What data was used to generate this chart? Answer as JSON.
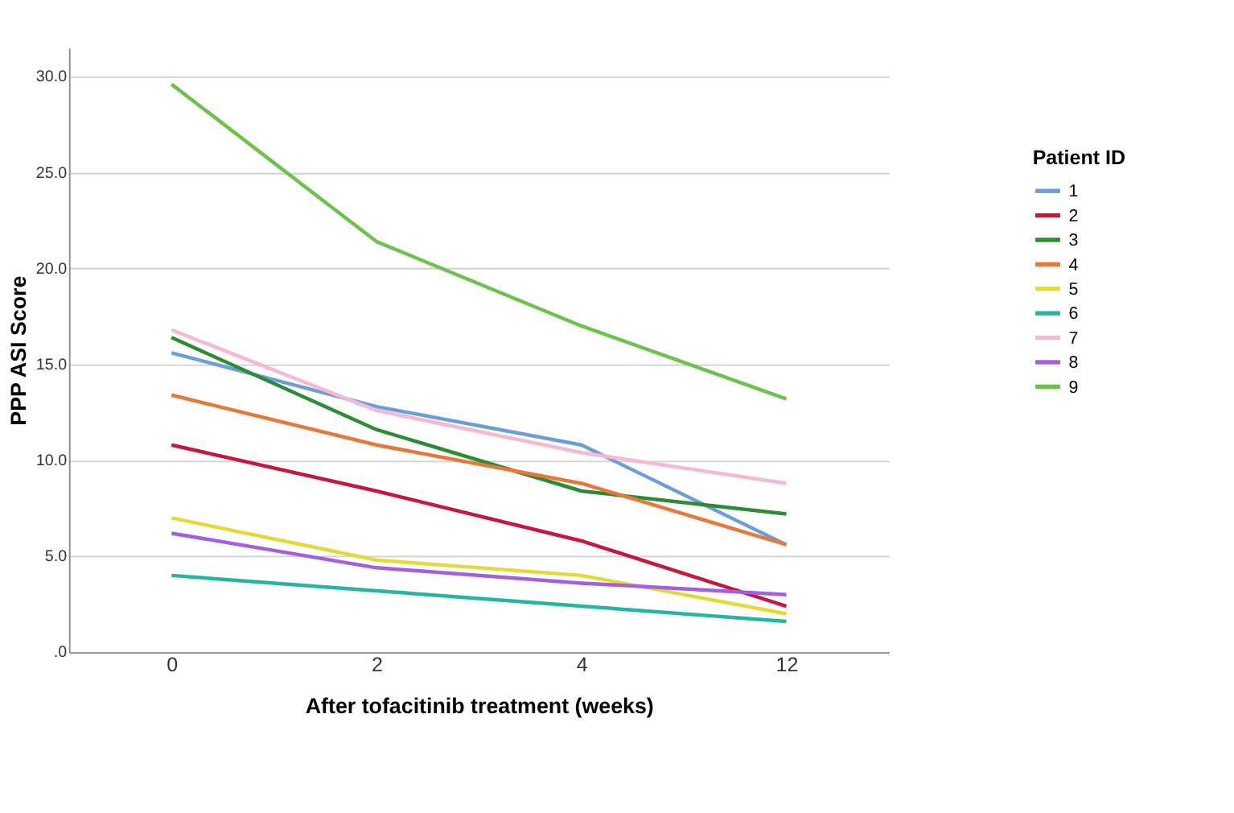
{
  "chart_data": {
    "type": "line",
    "xlabel": "After tofacitinib treatment (weeks)",
    "ylabel": "PPP ASI Score",
    "legend_title": "Patient ID",
    "categories": [
      "0",
      "2",
      "4",
      "12"
    ],
    "ylim": [
      0,
      31.5
    ],
    "yticks": [
      {
        "value": 0,
        "label": ".0"
      },
      {
        "value": 5,
        "label": "5.0"
      },
      {
        "value": 10,
        "label": "10.0"
      },
      {
        "value": 15,
        "label": "15.0"
      },
      {
        "value": 20,
        "label": "20.0"
      },
      {
        "value": 25,
        "label": "25.0"
      },
      {
        "value": 30,
        "label": "30.0"
      }
    ],
    "grid": "y",
    "legend": "right",
    "marker": "none",
    "line_style": "solid",
    "series": [
      {
        "name": "1",
        "color": "#6a9ed8",
        "values": [
          15.6,
          12.8,
          10.8,
          5.6
        ]
      },
      {
        "name": "2",
        "color": "#c8173f",
        "values": [
          10.8,
          8.4,
          5.8,
          2.4
        ]
      },
      {
        "name": "3",
        "color": "#2e8b35",
        "values": [
          16.4,
          11.6,
          8.4,
          7.2
        ]
      },
      {
        "name": "4",
        "color": "#e8773a",
        "values": [
          13.4,
          10.8,
          8.8,
          5.6
        ]
      },
      {
        "name": "5",
        "color": "#e3d93a",
        "values": [
          7.0,
          4.8,
          4.0,
          2.0
        ]
      },
      {
        "name": "6",
        "color": "#24b5a5",
        "values": [
          4.0,
          3.2,
          2.4,
          1.6
        ]
      },
      {
        "name": "7",
        "color": "#f7b8d6",
        "values": [
          16.8,
          12.6,
          10.4,
          8.8
        ]
      },
      {
        "name": "8",
        "color": "#a45ee0",
        "values": [
          6.2,
          4.4,
          3.6,
          3.0
        ]
      },
      {
        "name": "9",
        "color": "#6cc24a",
        "values": [
          29.6,
          21.4,
          17.0,
          13.2
        ]
      }
    ]
  }
}
